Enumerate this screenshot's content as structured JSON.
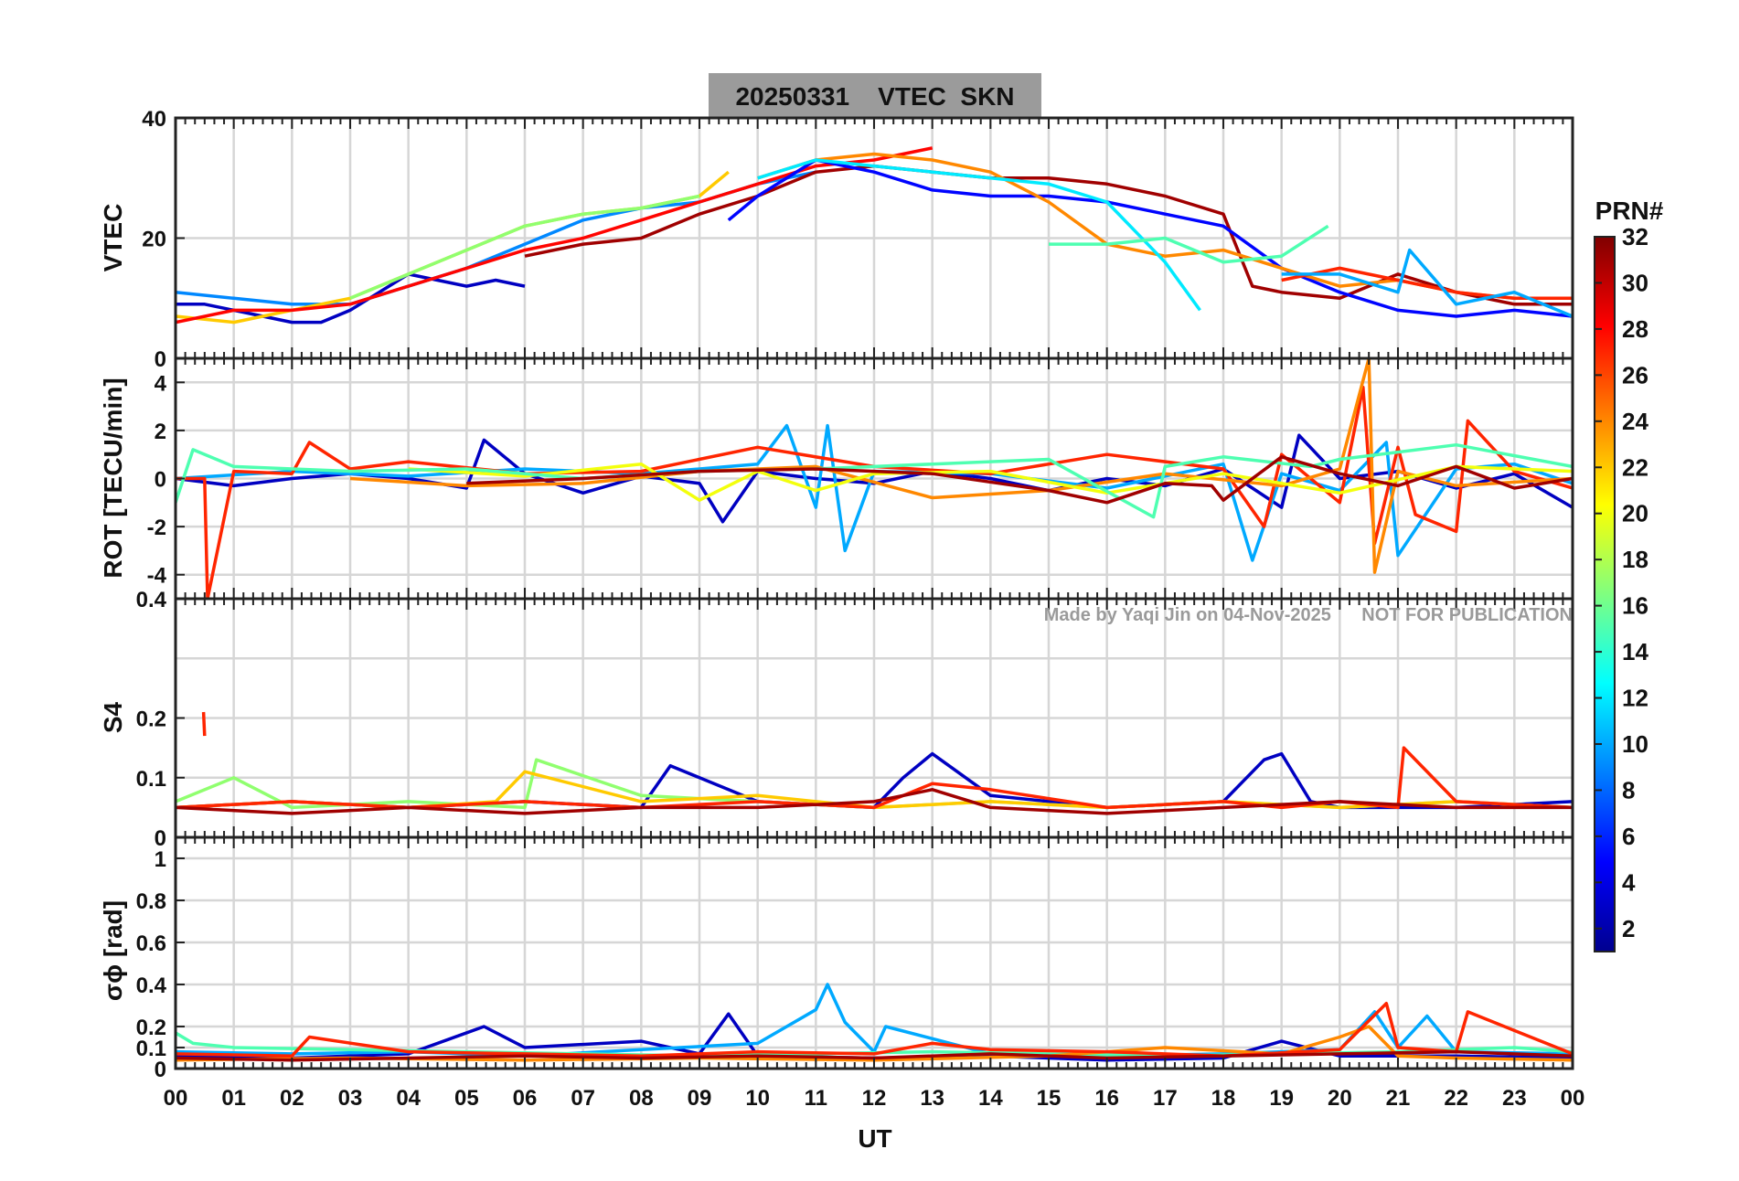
{
  "title": "20250331    VTEC  SKN",
  "watermark": "Made by Yaqi Jin on 04-Nov-2025      NOT FOR PUBLICATION",
  "xlabel": "UT",
  "x_tick_labels": [
    "00",
    "01",
    "02",
    "03",
    "04",
    "05",
    "06",
    "07",
    "08",
    "09",
    "10",
    "11",
    "12",
    "13",
    "14",
    "15",
    "16",
    "17",
    "18",
    "19",
    "20",
    "21",
    "22",
    "23",
    "00"
  ],
  "colorbar": {
    "label": "PRN#",
    "range": [
      1,
      32
    ],
    "tick_labels": [
      "2",
      "4",
      "6",
      "8",
      "10",
      "12",
      "14",
      "16",
      "18",
      "20",
      "22",
      "24",
      "26",
      "28",
      "30",
      "32"
    ],
    "colormap": "jet"
  },
  "chart_data": [
    {
      "type": "line",
      "panel": "vtec",
      "ylabel": "VTEC",
      "ylim": [
        0,
        40
      ],
      "xlim": [
        0,
        24
      ],
      "y_tick_labels": [
        "0",
        "20",
        "40"
      ],
      "grid": true,
      "series": [
        {
          "prn": 3,
          "x": [
            0,
            0.5,
            1,
            1.5,
            2,
            2.5,
            3,
            3.5,
            4,
            4.5,
            5,
            5.5,
            6
          ],
          "y": [
            9,
            9,
            8,
            7,
            6,
            6,
            8,
            11,
            14,
            13,
            12,
            13,
            12
          ]
        },
        {
          "prn": 9,
          "x": [
            0,
            1,
            2,
            3,
            4,
            5,
            6,
            7,
            8,
            9,
            10,
            11
          ],
          "y": [
            11,
            10,
            9,
            9,
            12,
            15,
            19,
            23,
            25,
            26,
            29,
            31
          ]
        },
        {
          "prn": 22,
          "x": [
            0,
            1,
            2,
            3,
            4,
            5,
            6,
            7,
            8,
            9,
            9.5
          ],
          "y": [
            7,
            6,
            8,
            10,
            14,
            18,
            22,
            24,
            25,
            27,
            31
          ]
        },
        {
          "prn": 28,
          "x": [
            0,
            1,
            2,
            3,
            4,
            5,
            6,
            7,
            8,
            9,
            10,
            11,
            12,
            13
          ],
          "y": [
            6,
            8,
            8,
            9,
            12,
            15,
            18,
            20,
            23,
            26,
            29,
            32,
            33,
            35
          ]
        },
        {
          "prn": 17,
          "x": [
            3,
            4,
            5,
            6,
            7,
            8,
            9
          ],
          "y": [
            10,
            14,
            18,
            22,
            24,
            25,
            27
          ]
        },
        {
          "prn": 31,
          "x": [
            6,
            7,
            8,
            9,
            10,
            11,
            12,
            13,
            14,
            15,
            16,
            17,
            18,
            18.5,
            19,
            20,
            21,
            22,
            23,
            24
          ],
          "y": [
            17,
            19,
            20,
            24,
            27,
            31,
            32,
            31,
            30,
            30,
            29,
            27,
            24,
            12,
            11,
            10,
            14,
            11,
            9,
            9
          ]
        },
        {
          "prn": 5,
          "x": [
            9.5,
            10,
            11,
            12,
            13,
            14,
            15,
            16,
            17,
            18,
            19,
            20,
            21,
            22,
            23,
            24
          ],
          "y": [
            23,
            27,
            33,
            31,
            28,
            27,
            27,
            26,
            24,
            22,
            15,
            11,
            8,
            7,
            8,
            7
          ]
        },
        {
          "prn": 24,
          "x": [
            10,
            11,
            12,
            13,
            14,
            15,
            16,
            17,
            18,
            19,
            20,
            21,
            22,
            23,
            24
          ],
          "y": [
            30,
            33,
            34,
            33,
            31,
            26,
            19,
            17,
            18,
            15,
            12,
            13,
            11,
            10,
            10
          ]
        },
        {
          "prn": 12,
          "x": [
            10,
            11,
            12,
            13,
            14,
            15,
            16,
            17,
            17.6
          ],
          "y": [
            30,
            33,
            32,
            31,
            30,
            29,
            26,
            16,
            8
          ]
        },
        {
          "prn": 15,
          "x": [
            15,
            16,
            17,
            18,
            19,
            19.8
          ],
          "y": [
            19,
            19,
            20,
            16,
            17,
            22
          ]
        },
        {
          "prn": 27,
          "x": [
            19,
            20,
            21,
            22,
            23,
            24
          ],
          "y": [
            13,
            15,
            13,
            11,
            10,
            10
          ]
        },
        {
          "prn": 10,
          "x": [
            19,
            20,
            21,
            21.2,
            22,
            23,
            24
          ],
          "y": [
            14,
            14,
            11,
            18,
            9,
            11,
            7
          ]
        }
      ]
    },
    {
      "type": "line",
      "panel": "rot",
      "ylabel": "ROT [TECU/min]",
      "ylim": [
        -5,
        5
      ],
      "xlim": [
        0,
        24
      ],
      "y_tick_labels": [
        "-4",
        "-2",
        "0",
        "2",
        "4"
      ],
      "grid": true,
      "series": [
        {
          "prn": 3,
          "x": [
            0,
            1,
            2,
            3,
            4,
            5,
            5.3,
            6,
            7,
            8,
            9,
            9.4,
            10,
            11,
            12,
            13,
            14,
            15,
            16,
            17,
            18,
            19,
            19.3,
            20,
            21,
            22,
            23,
            24
          ],
          "y": [
            0,
            -0.3,
            0,
            0.2,
            0,
            -0.4,
            1.6,
            0.2,
            -0.6,
            0.1,
            -0.2,
            -1.8,
            0.3,
            0,
            -0.2,
            0.3,
            0,
            -0.5,
            0,
            -0.3,
            0.4,
            -1.2,
            1.8,
            0,
            0.3,
            -0.4,
            0.2,
            -1.2
          ]
        },
        {
          "prn": 10,
          "x": [
            0,
            2,
            4,
            6,
            8,
            10,
            10.5,
            11,
            11.2,
            11.5,
            12,
            14,
            16,
            18,
            18.5,
            19,
            20,
            20.8,
            21,
            22,
            23,
            24
          ],
          "y": [
            0,
            0.3,
            0.1,
            0.4,
            0.2,
            0.6,
            2.2,
            -1.2,
            2.2,
            -3,
            0.3,
            0.2,
            -0.4,
            0.6,
            -3.4,
            0.2,
            -0.5,
            1.5,
            -3.2,
            0.4,
            0.6,
            -0.2
          ]
        },
        {
          "prn": 27,
          "x": [
            0,
            0.5,
            0.55,
            1,
            2,
            2.3,
            3,
            4,
            6,
            8,
            10,
            12,
            14,
            16,
            18,
            18.7,
            19,
            20,
            20.4,
            20.6,
            21,
            21.3,
            22,
            22.2,
            23,
            24
          ],
          "y": [
            0,
            0,
            -5,
            0.3,
            0.2,
            1.5,
            0.4,
            0.7,
            0.2,
            0.3,
            1.3,
            0.5,
            0.2,
            1,
            0.4,
            -2,
            1,
            -1,
            3.8,
            -2.7,
            1.3,
            -1.5,
            -2.2,
            2.4,
            0.3,
            -0.4
          ]
        },
        {
          "prn": 24,
          "x": [
            3,
            5,
            7,
            9,
            11,
            13,
            15,
            17,
            19,
            20,
            20.5,
            20.6,
            21,
            22,
            24
          ],
          "y": [
            0,
            -0.3,
            -0.2,
            0.3,
            0.5,
            -0.8,
            -0.5,
            0.2,
            -0.3,
            0.4,
            5,
            -3.9,
            0.3,
            -0.3,
            0
          ]
        },
        {
          "prn": 20,
          "x": [
            4,
            6,
            8,
            9,
            10,
            11,
            12,
            14,
            16,
            18,
            20,
            22,
            24
          ],
          "y": [
            0.4,
            0.1,
            0.6,
            -0.9,
            0.3,
            -0.5,
            0.2,
            0.3,
            -0.6,
            0.2,
            -0.6,
            0.5,
            0.3
          ]
        },
        {
          "prn": 15,
          "x": [
            0,
            0.3,
            1,
            3,
            5,
            7,
            9,
            11,
            13,
            15,
            16.8,
            17,
            18,
            19.5,
            20,
            22,
            24
          ],
          "y": [
            -1,
            1.2,
            0.5,
            0.3,
            0.4,
            0,
            0.3,
            0.4,
            0.6,
            0.8,
            -1.6,
            0.5,
            0.9,
            0.5,
            0.8,
            1.4,
            0.5
          ]
        },
        {
          "prn": 31,
          "x": [
            5,
            7,
            9,
            11,
            13,
            15,
            16,
            17,
            17.8,
            18,
            19,
            20,
            21,
            22,
            23,
            24
          ],
          "y": [
            -0.2,
            0,
            0.3,
            0.4,
            0.2,
            -0.5,
            -1,
            -0.2,
            -0.3,
            -0.9,
            0.9,
            0.2,
            -0.3,
            0.5,
            -0.4,
            0
          ]
        }
      ]
    },
    {
      "type": "line",
      "panel": "s4",
      "ylabel": "S4",
      "ylim": [
        0,
        0.4
      ],
      "xlim": [
        0,
        24
      ],
      "y_tick_labels": [
        "0",
        "0.1",
        "0.2",
        "0.4"
      ],
      "grid": true,
      "series": [
        {
          "prn": 27,
          "x": [
            0.48,
            0.5
          ],
          "y": [
            0.21,
            0.17
          ]
        },
        {
          "prn": 3,
          "x": [
            0,
            2,
            4,
            6,
            8,
            8.5,
            10,
            12,
            12.5,
            13,
            14,
            16,
            18,
            18.7,
            19,
            19.5,
            20,
            22,
            24
          ],
          "y": [
            0.05,
            0.06,
            0.05,
            0.06,
            0.05,
            0.12,
            0.06,
            0.05,
            0.1,
            0.14,
            0.07,
            0.05,
            0.06,
            0.13,
            0.14,
            0.06,
            0.05,
            0.05,
            0.06
          ]
        },
        {
          "prn": 17,
          "x": [
            0,
            1,
            2,
            4,
            6,
            6.2,
            8,
            10,
            12,
            14,
            16,
            18,
            20,
            22,
            24
          ],
          "y": [
            0.06,
            0.1,
            0.05,
            0.06,
            0.05,
            0.13,
            0.07,
            0.06,
            0.05,
            0.06,
            0.05,
            0.06,
            0.05,
            0.06,
            0.05
          ]
        },
        {
          "prn": 22,
          "x": [
            0,
            2,
            4,
            5.5,
            6,
            8,
            10,
            12,
            14,
            16,
            18,
            20,
            22,
            24
          ],
          "y": [
            0.05,
            0.06,
            0.05,
            0.06,
            0.11,
            0.06,
            0.07,
            0.05,
            0.06,
            0.05,
            0.06,
            0.05,
            0.06,
            0.05
          ]
        },
        {
          "prn": 27,
          "x": [
            0,
            2,
            4,
            6,
            8,
            10,
            12,
            13,
            14,
            16,
            18,
            19,
            20,
            21,
            21.1,
            22,
            24
          ],
          "y": [
            0.05,
            0.06,
            0.05,
            0.06,
            0.05,
            0.06,
            0.05,
            0.09,
            0.08,
            0.05,
            0.06,
            0.05,
            0.06,
            0.05,
            0.15,
            0.06,
            0.05
          ]
        },
        {
          "prn": 31,
          "x": [
            0,
            2,
            4,
            6,
            8,
            10,
            12,
            13,
            14,
            16,
            18,
            20,
            22,
            24
          ],
          "y": [
            0.05,
            0.04,
            0.05,
            0.04,
            0.05,
            0.05,
            0.06,
            0.08,
            0.05,
            0.04,
            0.05,
            0.06,
            0.05,
            0.05
          ]
        }
      ]
    },
    {
      "type": "line",
      "panel": "sigma_phi",
      "ylabel": "σϕ [rad]",
      "ylim": [
        0,
        1.1
      ],
      "xlim": [
        0,
        24
      ],
      "y_tick_labels": [
        "0",
        "0.1",
        "0.2",
        "0.4",
        "0.6",
        "0.8",
        "1"
      ],
      "grid": true,
      "series": [
        {
          "prn": 3,
          "x": [
            0,
            2,
            4,
            5.3,
            6,
            8,
            9,
            9.5,
            10,
            12,
            14,
            16,
            18,
            19,
            20,
            22,
            24
          ],
          "y": [
            0.06,
            0.05,
            0.07,
            0.2,
            0.1,
            0.13,
            0.07,
            0.26,
            0.06,
            0.05,
            0.06,
            0.04,
            0.05,
            0.13,
            0.06,
            0.06,
            0.05
          ]
        },
        {
          "prn": 10,
          "x": [
            0,
            2,
            4,
            6,
            8,
            10,
            10.5,
            11,
            11.2,
            11.5,
            12,
            12.2,
            14,
            16,
            18,
            20,
            20.6,
            21,
            21.5,
            22,
            24
          ],
          "y": [
            0.08,
            0.07,
            0.08,
            0.06,
            0.09,
            0.12,
            0.2,
            0.28,
            0.4,
            0.22,
            0.08,
            0.2,
            0.07,
            0.06,
            0.07,
            0.09,
            0.27,
            0.1,
            0.25,
            0.08,
            0.07
          ]
        },
        {
          "prn": 15,
          "x": [
            0,
            0.3,
            1,
            3,
            5,
            7,
            9,
            11,
            13,
            15,
            17,
            19,
            21,
            23,
            24
          ],
          "y": [
            0.17,
            0.12,
            0.1,
            0.09,
            0.08,
            0.07,
            0.06,
            0.07,
            0.08,
            0.07,
            0.06,
            0.07,
            0.08,
            0.1,
            0.08
          ]
        },
        {
          "prn": 24,
          "x": [
            0,
            3,
            6,
            9,
            12,
            15,
            17,
            19,
            20,
            20.5,
            21,
            22,
            24
          ],
          "y": [
            0.04,
            0.05,
            0.04,
            0.05,
            0.04,
            0.06,
            0.1,
            0.07,
            0.15,
            0.2,
            0.06,
            0.05,
            0.04
          ]
        },
        {
          "prn": 27,
          "x": [
            0,
            2,
            2.3,
            4,
            6,
            8,
            10,
            12,
            13,
            14,
            16,
            18,
            20,
            20.8,
            21,
            22,
            22.2,
            24
          ],
          "y": [
            0.07,
            0.06,
            0.15,
            0.08,
            0.07,
            0.06,
            0.08,
            0.07,
            0.12,
            0.09,
            0.08,
            0.06,
            0.09,
            0.31,
            0.1,
            0.08,
            0.27,
            0.07
          ]
        },
        {
          "prn": 31,
          "x": [
            0,
            2,
            4,
            6,
            8,
            10,
            12,
            14,
            16,
            18,
            20,
            22,
            24
          ],
          "y": [
            0.05,
            0.04,
            0.05,
            0.06,
            0.05,
            0.06,
            0.05,
            0.07,
            0.05,
            0.06,
            0.07,
            0.08,
            0.06
          ]
        }
      ]
    }
  ]
}
